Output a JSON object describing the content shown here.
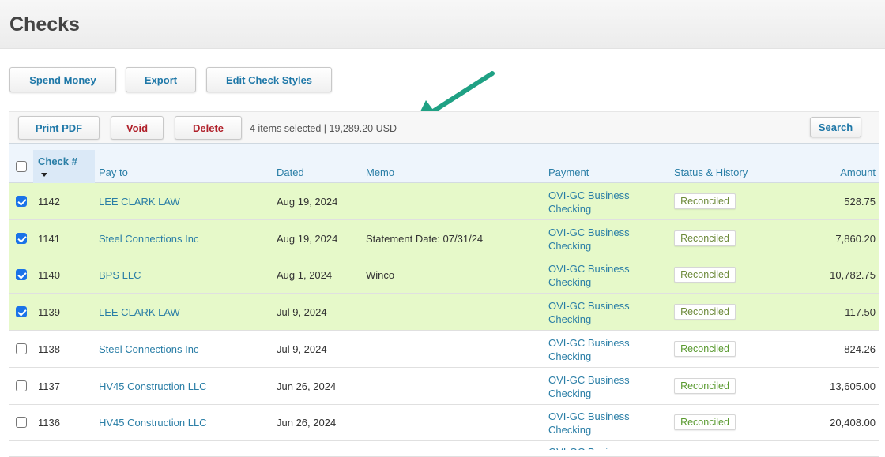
{
  "page": {
    "title": "Checks"
  },
  "actions": {
    "spend_money": "Spend Money",
    "export": "Export",
    "edit_check_styles": "Edit Check Styles"
  },
  "toolbar": {
    "print_pdf": "Print PDF",
    "void": "Void",
    "delete": "Delete",
    "selection_summary": "4 items selected | 19,289.20 USD",
    "search": "Search"
  },
  "table": {
    "headers": {
      "check_no": "Check #",
      "pay_to": "Pay to",
      "dated": "Dated",
      "memo": "Memo",
      "payment": "Payment",
      "status": "Status & History",
      "amount": "Amount"
    },
    "rows": [
      {
        "selected": true,
        "check_no": "1142",
        "pay_to": "LEE CLARK LAW",
        "dated": "Aug 19, 2024",
        "memo": "",
        "payment_line1": "OVI-GC Business",
        "payment_line2": "Checking",
        "status": "Reconciled",
        "amount": "528.75"
      },
      {
        "selected": true,
        "check_no": "1141",
        "pay_to": "Steel Connections Inc",
        "dated": "Aug 19, 2024",
        "memo": "Statement Date: 07/31/24",
        "payment_line1": "OVI-GC Business",
        "payment_line2": "Checking",
        "status": "Reconciled",
        "amount": "7,860.20"
      },
      {
        "selected": true,
        "check_no": "1140",
        "pay_to": "BPS LLC",
        "dated": "Aug 1, 2024",
        "memo": "Winco",
        "payment_line1": "OVI-GC Business",
        "payment_line2": "Checking",
        "status": "Reconciled",
        "amount": "10,782.75"
      },
      {
        "selected": true,
        "check_no": "1139",
        "pay_to": "LEE CLARK LAW",
        "dated": "Jul 9, 2024",
        "memo": "",
        "payment_line1": "OVI-GC Business",
        "payment_line2": "Checking",
        "status": "Reconciled",
        "amount": "117.50"
      },
      {
        "selected": false,
        "check_no": "1138",
        "pay_to": "Steel Connections Inc",
        "dated": "Jul 9, 2024",
        "memo": "",
        "payment_line1": "OVI-GC Business",
        "payment_line2": "Checking",
        "status": "Reconciled",
        "amount": "824.26"
      },
      {
        "selected": false,
        "check_no": "1137",
        "pay_to": "HV45 Construction LLC",
        "dated": "Jun 26, 2024",
        "memo": "",
        "payment_line1": "OVI-GC Business",
        "payment_line2": "Checking",
        "status": "Reconciled",
        "amount": "13,605.00"
      },
      {
        "selected": false,
        "check_no": "1136",
        "pay_to": "HV45 Construction LLC",
        "dated": "Jun 26, 2024",
        "memo": "",
        "payment_line1": "OVI-GC Business",
        "payment_line2": "Checking",
        "status": "Reconciled",
        "amount": "20,408.00"
      }
    ]
  },
  "colors": {
    "selected_row": "#e6f9c9",
    "link": "#2a7ea6",
    "arrow": "#1fa184"
  }
}
